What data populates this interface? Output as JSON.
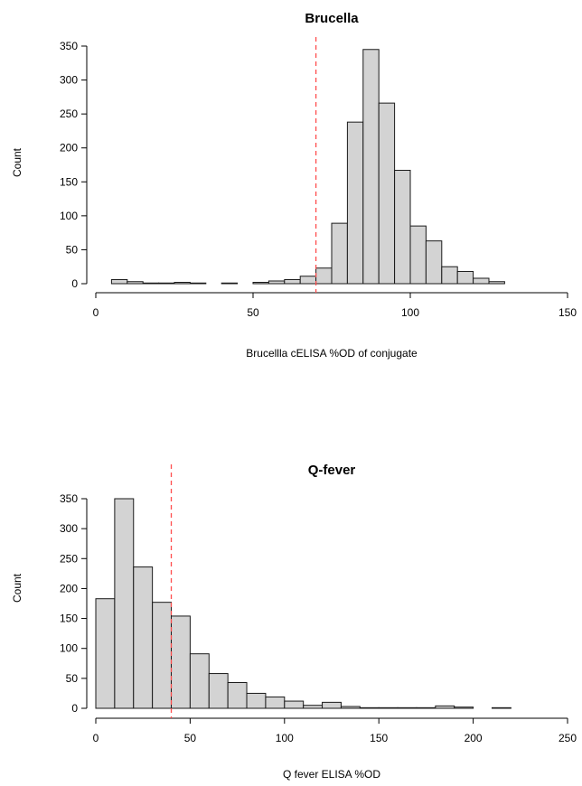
{
  "chart_data": [
    {
      "type": "bar",
      "title": "Brucella",
      "xlabel": "Brucellla cELISA %OD of conjugate",
      "ylabel": "Count",
      "xlim": [
        0,
        150
      ],
      "ylim": [
        0,
        350
      ],
      "x_ticks": [
        0,
        50,
        100,
        150
      ],
      "y_ticks": [
        0,
        50,
        100,
        150,
        200,
        250,
        300,
        350
      ],
      "bin_width": 5,
      "bins": [
        {
          "x0": 5,
          "x1": 10,
          "count": 6
        },
        {
          "x0": 10,
          "x1": 15,
          "count": 3
        },
        {
          "x0": 15,
          "x1": 20,
          "count": 1
        },
        {
          "x0": 20,
          "x1": 25,
          "count": 1
        },
        {
          "x0": 25,
          "x1": 30,
          "count": 2
        },
        {
          "x0": 30,
          "x1": 35,
          "count": 1
        },
        {
          "x0": 35,
          "x1": 40,
          "count": 0
        },
        {
          "x0": 40,
          "x1": 45,
          "count": 1
        },
        {
          "x0": 45,
          "x1": 50,
          "count": 0
        },
        {
          "x0": 50,
          "x1": 55,
          "count": 2
        },
        {
          "x0": 55,
          "x1": 60,
          "count": 4
        },
        {
          "x0": 60,
          "x1": 65,
          "count": 6
        },
        {
          "x0": 65,
          "x1": 70,
          "count": 11
        },
        {
          "x0": 70,
          "x1": 75,
          "count": 23
        },
        {
          "x0": 75,
          "x1": 80,
          "count": 89
        },
        {
          "x0": 80,
          "x1": 85,
          "count": 238
        },
        {
          "x0": 85,
          "x1": 90,
          "count": 345
        },
        {
          "x0": 90,
          "x1": 95,
          "count": 266
        },
        {
          "x0": 95,
          "x1": 100,
          "count": 167
        },
        {
          "x0": 100,
          "x1": 105,
          "count": 85
        },
        {
          "x0": 105,
          "x1": 110,
          "count": 63
        },
        {
          "x0": 110,
          "x1": 115,
          "count": 25
        },
        {
          "x0": 115,
          "x1": 120,
          "count": 18
        },
        {
          "x0": 120,
          "x1": 125,
          "count": 8
        },
        {
          "x0": 125,
          "x1": 130,
          "count": 3
        }
      ],
      "reference_line": {
        "x": 70,
        "color": "#ff4d4d",
        "style": "dashed"
      },
      "bar_color": "#d3d3d3"
    },
    {
      "type": "bar",
      "title": "Q-fever",
      "xlabel": "Q fever ELISA %OD",
      "ylabel": "Count",
      "xlim": [
        0,
        250
      ],
      "ylim": [
        0,
        350
      ],
      "x_ticks": [
        0,
        50,
        100,
        150,
        200,
        250
      ],
      "y_ticks": [
        0,
        50,
        100,
        150,
        200,
        250,
        300,
        350
      ],
      "bin_width": 10,
      "bins": [
        {
          "x0": 0,
          "x1": 10,
          "count": 183
        },
        {
          "x0": 10,
          "x1": 20,
          "count": 350
        },
        {
          "x0": 20,
          "x1": 30,
          "count": 236
        },
        {
          "x0": 30,
          "x1": 40,
          "count": 177
        },
        {
          "x0": 40,
          "x1": 50,
          "count": 154
        },
        {
          "x0": 50,
          "x1": 60,
          "count": 91
        },
        {
          "x0": 60,
          "x1": 70,
          "count": 58
        },
        {
          "x0": 70,
          "x1": 80,
          "count": 43
        },
        {
          "x0": 80,
          "x1": 90,
          "count": 25
        },
        {
          "x0": 90,
          "x1": 100,
          "count": 19
        },
        {
          "x0": 100,
          "x1": 110,
          "count": 12
        },
        {
          "x0": 110,
          "x1": 120,
          "count": 5
        },
        {
          "x0": 120,
          "x1": 130,
          "count": 10
        },
        {
          "x0": 130,
          "x1": 140,
          "count": 3
        },
        {
          "x0": 140,
          "x1": 150,
          "count": 1
        },
        {
          "x0": 150,
          "x1": 160,
          "count": 1
        },
        {
          "x0": 160,
          "x1": 170,
          "count": 1
        },
        {
          "x0": 170,
          "x1": 180,
          "count": 1
        },
        {
          "x0": 180,
          "x1": 190,
          "count": 4
        },
        {
          "x0": 190,
          "x1": 200,
          "count": 2
        },
        {
          "x0": 200,
          "x1": 210,
          "count": 0
        },
        {
          "x0": 210,
          "x1": 220,
          "count": 1
        }
      ],
      "reference_line": {
        "x": 40,
        "color": "#ff4d4d",
        "style": "dashed"
      },
      "bar_color": "#d3d3d3"
    }
  ]
}
